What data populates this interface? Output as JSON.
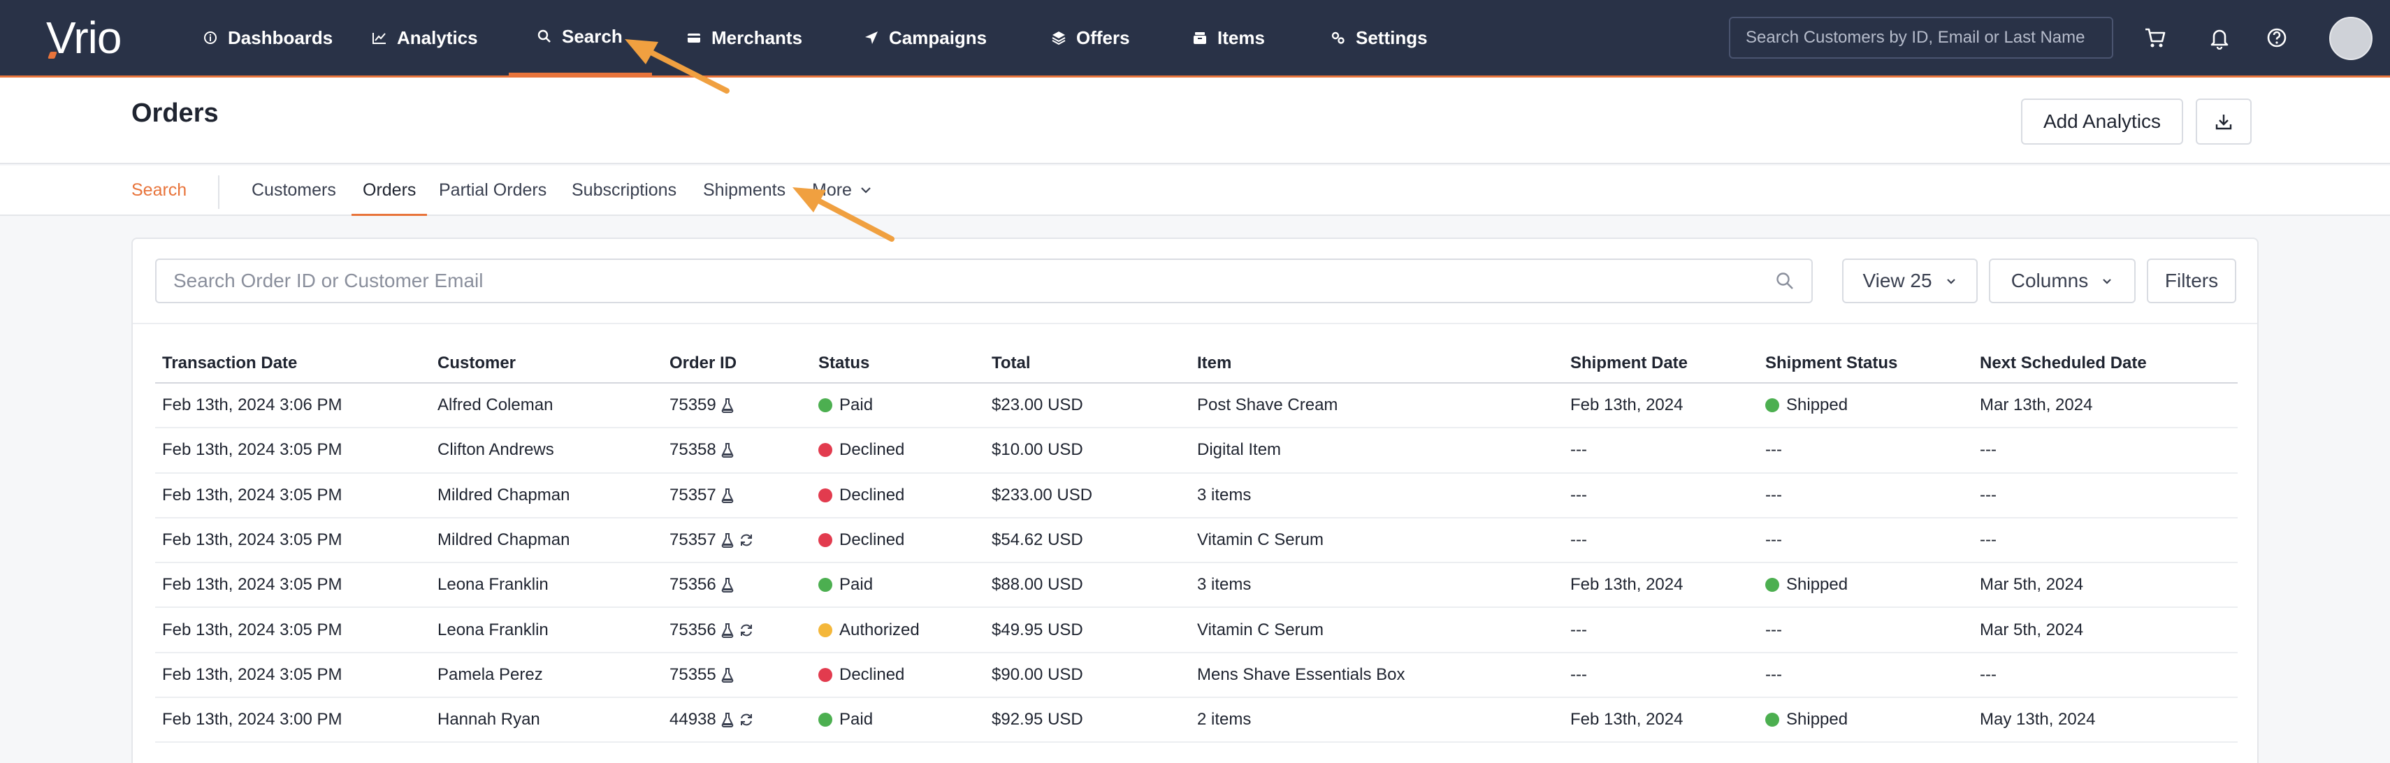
{
  "brand": {
    "logo_text": "Vrio",
    "accent": "#e8743b",
    "nav_bg": "#293247"
  },
  "nav": {
    "items": [
      {
        "label": "Dashboards",
        "icon": "info-icon"
      },
      {
        "label": "Analytics",
        "icon": "chart-line-icon"
      },
      {
        "label": "Search",
        "icon": "search-icon",
        "active": true
      },
      {
        "label": "Merchants",
        "icon": "card-icon"
      },
      {
        "label": "Campaigns",
        "icon": "send-icon"
      },
      {
        "label": "Offers",
        "icon": "layers-icon"
      },
      {
        "label": "Items",
        "icon": "box-icon"
      },
      {
        "label": "Settings",
        "icon": "gears-icon"
      }
    ],
    "search_placeholder": "Search Customers by ID, Email or Last Name"
  },
  "header": {
    "title": "Orders",
    "add_analytics_label": "Add Analytics"
  },
  "subtabs": {
    "search_label": "Search",
    "items": [
      "Customers",
      "Orders",
      "Partial Orders",
      "Subscriptions",
      "Shipments",
      "More"
    ],
    "active": "Orders"
  },
  "toolbar": {
    "search_placeholder": "Search Order ID or Customer Email",
    "view_label": "View 25",
    "columns_label": "Columns",
    "filters_label": "Filters"
  },
  "table": {
    "columns": [
      "Transaction Date",
      "Customer",
      "Order ID",
      "Status",
      "Total",
      "Item",
      "Shipment Date",
      "Shipment Status",
      "Next Scheduled Date"
    ],
    "rows": [
      {
        "date": "Feb 13th, 2024 3:06 PM",
        "customer": "Alfred Coleman",
        "order_id": "75359",
        "recurring": false,
        "status": "Paid",
        "status_color": "green",
        "total": "$23.00 USD",
        "item": "Post Shave Cream",
        "ship_date": "Feb 13th, 2024",
        "ship_status": "Shipped",
        "next_date": "Mar 13th, 2024"
      },
      {
        "date": "Feb 13th, 2024 3:05 PM",
        "customer": "Clifton Andrews",
        "order_id": "75358",
        "recurring": false,
        "status": "Declined",
        "status_color": "red",
        "total": "$10.00 USD",
        "item": "Digital Item",
        "ship_date": "---",
        "ship_status": "---",
        "next_date": "---"
      },
      {
        "date": "Feb 13th, 2024 3:05 PM",
        "customer": "Mildred Chapman",
        "order_id": "75357",
        "recurring": false,
        "status": "Declined",
        "status_color": "red",
        "total": "$233.00 USD",
        "item": "3 items",
        "ship_date": "---",
        "ship_status": "---",
        "next_date": "---"
      },
      {
        "date": "Feb 13th, 2024 3:05 PM",
        "customer": "Mildred Chapman",
        "order_id": "75357",
        "recurring": true,
        "status": "Declined",
        "status_color": "red",
        "total": "$54.62 USD",
        "item": "Vitamin C Serum",
        "ship_date": "---",
        "ship_status": "---",
        "next_date": "---"
      },
      {
        "date": "Feb 13th, 2024 3:05 PM",
        "customer": "Leona Franklin",
        "order_id": "75356",
        "recurring": false,
        "status": "Paid",
        "status_color": "green",
        "total": "$88.00 USD",
        "item": "3 items",
        "ship_date": "Feb 13th, 2024",
        "ship_status": "Shipped",
        "next_date": "Mar 5th, 2024"
      },
      {
        "date": "Feb 13th, 2024 3:05 PM",
        "customer": "Leona Franklin",
        "order_id": "75356",
        "recurring": true,
        "status": "Authorized",
        "status_color": "yellow",
        "total": "$49.95 USD",
        "item": "Vitamin C Serum",
        "ship_date": "---",
        "ship_status": "---",
        "next_date": "Mar 5th, 2024"
      },
      {
        "date": "Feb 13th, 2024 3:05 PM",
        "customer": "Pamela Perez",
        "order_id": "75355",
        "recurring": false,
        "status": "Declined",
        "status_color": "red",
        "total": "$90.00 USD",
        "item": "Mens Shave Essentials Box",
        "ship_date": "---",
        "ship_status": "---",
        "next_date": "---"
      },
      {
        "date": "Feb 13th, 2024 3:00 PM",
        "customer": "Hannah Ryan",
        "order_id": "44938",
        "recurring": true,
        "status": "Paid",
        "status_color": "green",
        "total": "$92.95 USD",
        "item": "2 items",
        "ship_date": "Feb 13th, 2024",
        "ship_status": "Shipped",
        "next_date": "May 13th, 2024"
      }
    ]
  }
}
